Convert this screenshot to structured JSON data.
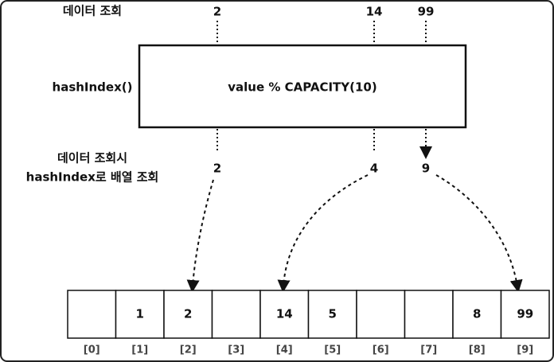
{
  "labels": {
    "lookup": "데이터 조회",
    "hash_function": "hashIndex()",
    "array_lookup": [
      "데이터 조회시",
      "hashIndex로 배열 조회"
    ]
  },
  "inputs": [
    "2",
    "14",
    "99"
  ],
  "function_box": "value % CAPACITY(10)",
  "outputs": [
    "2",
    "4",
    "9"
  ],
  "array": {
    "cells": [
      null,
      "1",
      "2",
      null,
      "14",
      "5",
      null,
      null,
      "8",
      "99"
    ],
    "indices": [
      "[0]",
      "[1]",
      "[2]",
      "[3]",
      "[4]",
      "[5]",
      "[6]",
      "[7]",
      "[8]",
      "[9]"
    ]
  }
}
